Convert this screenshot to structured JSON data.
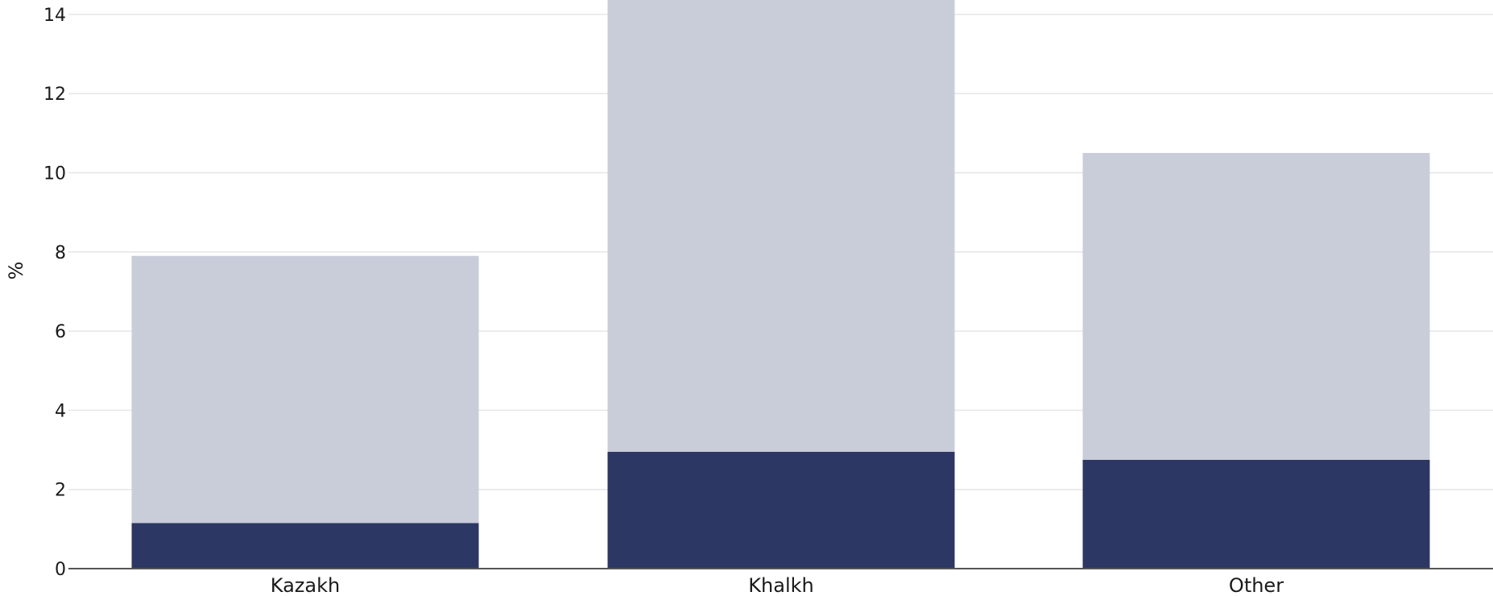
{
  "chart_data": {
    "type": "bar",
    "stacked": true,
    "categories": [
      "Kazakh",
      "Khalkh",
      "Other"
    ],
    "series": [
      {
        "values": [
          1.15,
          2.95,
          2.75
        ],
        "color": "#2c3764"
      },
      {
        "values": [
          6.75,
          11.5,
          7.75
        ],
        "color": "#c9ccd9"
      }
    ],
    "title": "",
    "xlabel": "",
    "ylabel": "%",
    "ylim": [
      0,
      14.4
    ],
    "yticks": [
      0,
      2,
      4,
      6,
      8,
      10,
      12,
      14
    ],
    "grid": true
  }
}
